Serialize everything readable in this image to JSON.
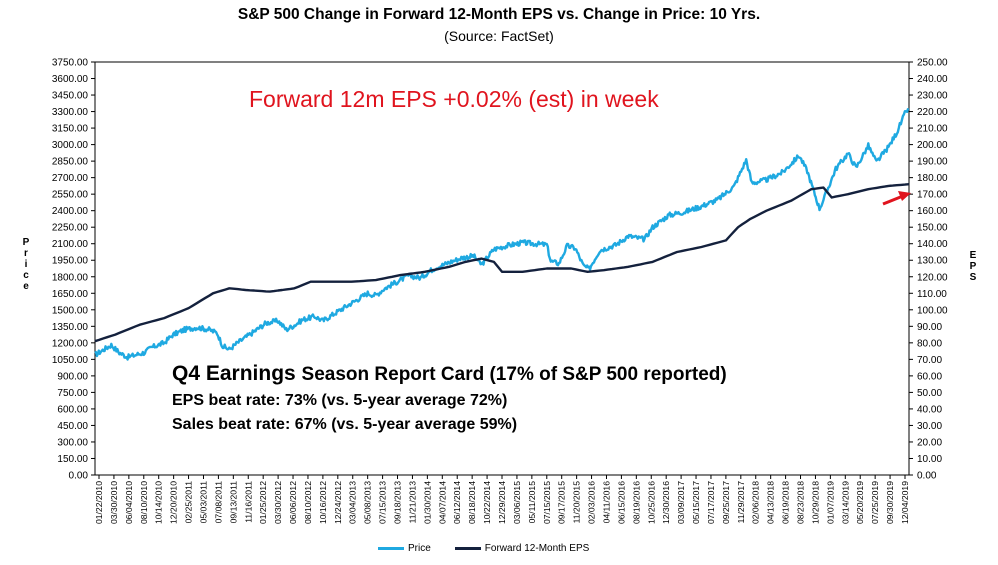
{
  "chart_data": {
    "type": "line",
    "title": "S&P 500 Change in Forward 12-Month EPS vs. Change in Price: 10 Yrs.",
    "subtitle": "(Source: FactSet)",
    "ylabel_left": "Price",
    "ylabel_right": "EPS",
    "ylim_left": [
      0,
      3750
    ],
    "ylim_right": [
      0,
      250
    ],
    "yticks_left": [
      "3750.00",
      "3600.00",
      "3450.00",
      "3300.00",
      "3150.00",
      "3000.00",
      "2850.00",
      "2700.00",
      "2550.00",
      "2400.00",
      "2250.00",
      "2100.00",
      "1950.00",
      "1800.00",
      "1650.00",
      "1500.00",
      "1350.00",
      "1200.00",
      "1050.00",
      "900.00",
      "750.00",
      "600.00",
      "450.00",
      "300.00",
      "150.00",
      "0.00"
    ],
    "yticks_right": [
      "250.00",
      "240.00",
      "230.00",
      "220.00",
      "210.00",
      "200.00",
      "190.00",
      "180.00",
      "170.00",
      "160.00",
      "150.00",
      "140.00",
      "130.00",
      "120.00",
      "110.00",
      "100.00",
      "90.00",
      "80.00",
      "70.00",
      "60.00",
      "50.00",
      "40.00",
      "30.00",
      "20.00",
      "10.00",
      "0.00"
    ],
    "x_ticks": [
      "01/22/2010",
      "03/30/2010",
      "06/04/2010",
      "08/10/2010",
      "10/14/2010",
      "12/20/2010",
      "02/25/2011",
      "05/03/2011",
      "07/08/2011",
      "09/13/2011",
      "11/16/2011",
      "01/25/2012",
      "03/30/2012",
      "06/06/2012",
      "08/10/2012",
      "10/16/2012",
      "12/24/2012",
      "03/04/2013",
      "05/08/2013",
      "07/15/2013",
      "09/18/2013",
      "11/21/2013",
      "01/30/2014",
      "04/07/2014",
      "06/12/2014",
      "08/18/2014",
      "10/22/2014",
      "12/29/2014",
      "03/06/2015",
      "05/11/2015",
      "07/15/2015",
      "09/17/2015",
      "11/20/2015",
      "02/03/2016",
      "04/11/2016",
      "06/15/2016",
      "08/19/2016",
      "10/25/2016",
      "12/30/2016",
      "03/09/2017",
      "05/15/2017",
      "07/17/2017",
      "09/25/2017",
      "11/29/2017",
      "02/06/2018",
      "04/13/2018",
      "06/19/2018",
      "08/23/2018",
      "10/29/2018",
      "01/07/2019",
      "03/14/2019",
      "05/20/2019",
      "07/25/2019",
      "09/30/2019",
      "12/04/2019"
    ],
    "series": [
      {
        "name": "Price",
        "color": "#1fa9e1",
        "points": [
          [
            2010.05,
            1090
          ],
          [
            2010.25,
            1180
          ],
          [
            2010.35,
            1110
          ],
          [
            2010.45,
            1070
          ],
          [
            2010.55,
            1090
          ],
          [
            2010.65,
            1110
          ],
          [
            2010.75,
            1160
          ],
          [
            2010.9,
            1200
          ],
          [
            2011.0,
            1270
          ],
          [
            2011.15,
            1320
          ],
          [
            2011.3,
            1340
          ],
          [
            2011.45,
            1320
          ],
          [
            2011.55,
            1290
          ],
          [
            2011.62,
            1170
          ],
          [
            2011.7,
            1140
          ],
          [
            2011.8,
            1200
          ],
          [
            2011.9,
            1250
          ],
          [
            2012.0,
            1300
          ],
          [
            2012.15,
            1380
          ],
          [
            2012.3,
            1400
          ],
          [
            2012.4,
            1320
          ],
          [
            2012.5,
            1360
          ],
          [
            2012.6,
            1410
          ],
          [
            2012.75,
            1440
          ],
          [
            2012.85,
            1400
          ],
          [
            2013.0,
            1470
          ],
          [
            2013.2,
            1560
          ],
          [
            2013.4,
            1650
          ],
          [
            2013.5,
            1630
          ],
          [
            2013.6,
            1690
          ],
          [
            2013.75,
            1750
          ],
          [
            2013.9,
            1810
          ],
          [
            2014.05,
            1790
          ],
          [
            2014.2,
            1870
          ],
          [
            2014.4,
            1930
          ],
          [
            2014.55,
            1970
          ],
          [
            2014.7,
            1990
          ],
          [
            2014.8,
            1910
          ],
          [
            2014.95,
            2050
          ],
          [
            2015.1,
            2080
          ],
          [
            2015.3,
            2110
          ],
          [
            2015.45,
            2100
          ],
          [
            2015.6,
            2090
          ],
          [
            2015.65,
            1940
          ],
          [
            2015.75,
            1920
          ],
          [
            2015.85,
            2080
          ],
          [
            2015.95,
            2060
          ],
          [
            2016.05,
            1900
          ],
          [
            2016.12,
            1870
          ],
          [
            2016.25,
            2040
          ],
          [
            2016.45,
            2090
          ],
          [
            2016.6,
            2170
          ],
          [
            2016.8,
            2140
          ],
          [
            2016.9,
            2250
          ],
          [
            2017.1,
            2360
          ],
          [
            2017.3,
            2390
          ],
          [
            2017.5,
            2440
          ],
          [
            2017.7,
            2500
          ],
          [
            2017.9,
            2620
          ],
          [
            2018.05,
            2860
          ],
          [
            2018.12,
            2650
          ],
          [
            2018.3,
            2680
          ],
          [
            2018.5,
            2750
          ],
          [
            2018.7,
            2900
          ],
          [
            2018.8,
            2760
          ],
          [
            2018.95,
            2420
          ],
          [
            2019.0,
            2500
          ],
          [
            2019.15,
            2780
          ],
          [
            2019.3,
            2920
          ],
          [
            2019.4,
            2790
          ],
          [
            2019.55,
            2990
          ],
          [
            2019.65,
            2840
          ],
          [
            2019.8,
            2980
          ],
          [
            2019.9,
            3110
          ],
          [
            2020.0,
            3280
          ],
          [
            2020.04,
            3330
          ]
        ]
      },
      {
        "name": "Forward 12-Month EPS",
        "color": "#14213d",
        "points": [
          [
            2010.05,
            81
          ],
          [
            2010.3,
            85
          ],
          [
            2010.6,
            91
          ],
          [
            2010.9,
            95
          ],
          [
            2011.2,
            101
          ],
          [
            2011.5,
            110
          ],
          [
            2011.7,
            113
          ],
          [
            2011.9,
            112
          ],
          [
            2012.2,
            111
          ],
          [
            2012.5,
            113
          ],
          [
            2012.7,
            117
          ],
          [
            2012.9,
            117
          ],
          [
            2013.2,
            117
          ],
          [
            2013.5,
            118
          ],
          [
            2013.8,
            121
          ],
          [
            2014.1,
            123
          ],
          [
            2014.4,
            126
          ],
          [
            2014.6,
            129
          ],
          [
            2014.8,
            131
          ],
          [
            2014.95,
            129
          ],
          [
            2015.05,
            123
          ],
          [
            2015.3,
            123
          ],
          [
            2015.6,
            125
          ],
          [
            2015.9,
            125
          ],
          [
            2016.1,
            123
          ],
          [
            2016.3,
            124
          ],
          [
            2016.6,
            126
          ],
          [
            2016.9,
            129
          ],
          [
            2017.2,
            135
          ],
          [
            2017.5,
            138
          ],
          [
            2017.8,
            142
          ],
          [
            2017.95,
            150
          ],
          [
            2018.1,
            155
          ],
          [
            2018.3,
            160
          ],
          [
            2018.6,
            166
          ],
          [
            2018.85,
            173
          ],
          [
            2019.0,
            174
          ],
          [
            2019.1,
            168
          ],
          [
            2019.3,
            170
          ],
          [
            2019.55,
            173
          ],
          [
            2019.8,
            175
          ],
          [
            2020.05,
            176
          ]
        ]
      }
    ],
    "legend_position": "bottom",
    "annotations": {
      "headline": "Forward 12m EPS +0.02% (est) in week",
      "card_title_lead": "Q4 Earnings",
      "card_title_rest": "Season Report Card (17% of S&P 500 reported)",
      "eps_beat": "EPS beat rate: 73% (vs. 5-year average 72%)",
      "sales_beat": "Sales beat rate: 67% (vs. 5-year average 59%)"
    }
  }
}
